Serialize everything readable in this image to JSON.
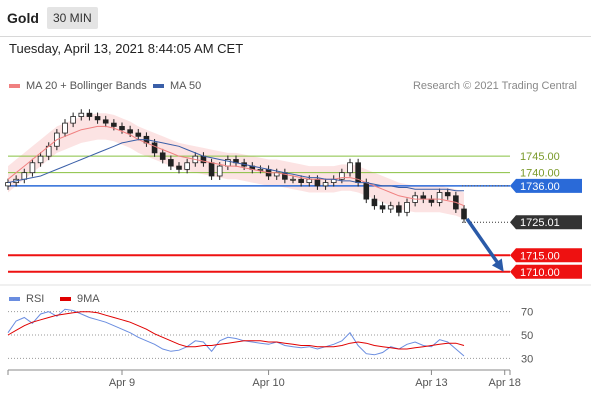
{
  "header": {
    "title": "Gold",
    "interval": "30 MIN"
  },
  "datetime": "Tuesday, April 13, 2021 8:44:05 AM CET",
  "legend": {
    "main": [
      {
        "name": "MA 20 + Bollinger Bands",
        "color": "#f08080"
      },
      {
        "name": "MA 50",
        "color": "#3a5fa8"
      }
    ],
    "rsi": [
      {
        "name": "RSI",
        "color": "#6a8de0"
      },
      {
        "name": "9MA",
        "color": "#e00000"
      }
    ]
  },
  "copyright": "Research © 2021 Trading Central",
  "chart_data": [
    {
      "type": "candlestick",
      "title": "",
      "ylim": [
        1706,
        1762
      ],
      "x_ticks": [
        {
          "label": "Apr 9",
          "index": 14
        },
        {
          "label": "Apr 10",
          "index": 32
        },
        {
          "label": "Apr 13",
          "index": 52
        },
        {
          "label": "Apr 18",
          "index": 61
        }
      ],
      "closes": [
        1737,
        1738,
        1740,
        1743,
        1745,
        1748,
        1752,
        1755,
        1757,
        1758,
        1757,
        1756,
        1755,
        1754,
        1753,
        1752,
        1751,
        1749,
        1746,
        1744,
        1742,
        1741,
        1743,
        1745,
        1743,
        1739,
        1742,
        1744,
        1743,
        1742,
        1741,
        1741,
        1739,
        1740,
        1738,
        1738,
        1737,
        1738,
        1736,
        1737,
        1738,
        1740,
        1743,
        1737,
        1732,
        1730,
        1729,
        1730,
        1728,
        1731,
        1733,
        1732,
        1731,
        1734,
        1733,
        1729,
        1726
      ],
      "ma20": [
        1738,
        1740,
        1742,
        1744,
        1746,
        1748,
        1750,
        1751,
        1752,
        1753,
        1753.5,
        1754,
        1754,
        1753.5,
        1752.5,
        1751.5,
        1750,
        1749,
        1748,
        1747,
        1746,
        1745,
        1744.5,
        1744,
        1743.5,
        1743,
        1742.5,
        1742,
        1742,
        1741.5,
        1741,
        1740.5,
        1740,
        1740,
        1739.5,
        1739,
        1738.5,
        1738,
        1738,
        1738,
        1738,
        1738.5,
        1738.5,
        1738,
        1737,
        1736,
        1735,
        1734,
        1733,
        1732.5,
        1732,
        1732,
        1732,
        1732,
        1731.5,
        1731,
        1730
      ],
      "ma50": [
        1737,
        1737.5,
        1738,
        1738.5,
        1739,
        1740,
        1741,
        1742,
        1743,
        1744,
        1745,
        1746,
        1747,
        1748,
        1749,
        1749.5,
        1750,
        1750,
        1749.5,
        1749,
        1748.5,
        1748,
        1747,
        1746,
        1745,
        1744.5,
        1744,
        1743.5,
        1743,
        1742.5,
        1742,
        1741.5,
        1741,
        1740.5,
        1740,
        1739.5,
        1739,
        1738.5,
        1738.5,
        1738,
        1738,
        1737.5,
        1737.5,
        1737,
        1737,
        1736.5,
        1736,
        1736,
        1735.5,
        1735.5,
        1735,
        1735,
        1735,
        1735,
        1735,
        1734.5,
        1734.5
      ],
      "levels": [
        {
          "value": 1745.0,
          "label": "1745.00",
          "color": "#88c040",
          "style": "thin"
        },
        {
          "value": 1740.0,
          "label": "1740.00",
          "color": "#88c040",
          "style": "thin"
        },
        {
          "value": 1736.0,
          "label": "1736.00",
          "color": "#2a6ad8",
          "style": "thick",
          "box": true
        },
        {
          "value": 1725.01,
          "label": "1725.01",
          "color": "#333333",
          "style": "dotted",
          "box": true
        },
        {
          "value": 1715.0,
          "label": "1715.00",
          "color": "#ee1111",
          "style": "thick",
          "box": true
        },
        {
          "value": 1710.0,
          "label": "1710.00",
          "color": "#ee1111",
          "style": "thick",
          "box": true
        }
      ],
      "arrow": {
        "from_index": 56,
        "from_value": 1726,
        "to_index": 61,
        "to_value": 1710
      }
    },
    {
      "type": "line",
      "title": "RSI",
      "ylim": [
        20,
        80
      ],
      "y_ticks": [
        70,
        50,
        30
      ],
      "series": [
        {
          "name": "RSI",
          "values": [
            52,
            62,
            65,
            60,
            68,
            70,
            66,
            72,
            71,
            68,
            65,
            63,
            61,
            58,
            55,
            52,
            48,
            45,
            42,
            38,
            36,
            37,
            40,
            45,
            44,
            36,
            45,
            48,
            47,
            45,
            44,
            43,
            42,
            44,
            41,
            40,
            39,
            40,
            38,
            40,
            42,
            45,
            52,
            41,
            34,
            33,
            35,
            40,
            38,
            42,
            44,
            41,
            40,
            46,
            44,
            38,
            32
          ]
        },
        {
          "name": "9MA",
          "values": [
            50,
            54,
            58,
            61,
            63,
            65,
            67,
            68,
            69,
            70,
            70,
            69,
            67,
            65,
            63,
            61,
            58,
            55,
            51,
            48,
            45,
            42,
            40,
            40,
            41,
            41,
            42,
            43,
            44,
            45,
            45,
            45,
            44,
            44,
            43,
            42,
            41,
            41,
            40,
            40,
            40,
            41,
            43,
            44,
            43,
            41,
            40,
            39,
            38,
            38,
            39,
            40,
            41,
            42,
            43,
            43,
            41
          ]
        }
      ]
    }
  ]
}
